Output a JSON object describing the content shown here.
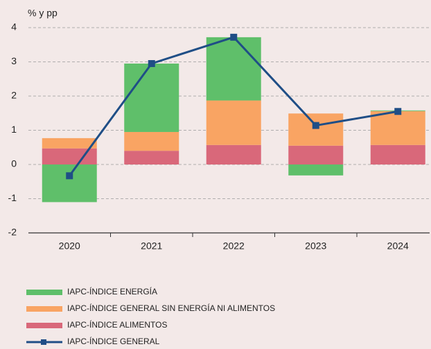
{
  "chart_data": {
    "type": "stacked_bar_line",
    "y_axis_label": "% y pp",
    "categories": [
      "2020",
      "2021",
      "2022",
      "2023",
      "2024"
    ],
    "series": [
      {
        "name": "IAPC-ÍNDICE ENERGÍA",
        "color": "#5fbf6a",
        "values": [
          -1.1,
          2.0,
          1.85,
          -0.32,
          0.02
        ]
      },
      {
        "name": "IAPC-ÍNDICE GENERAL SIN ENERGÍA NI ALIMENTOS",
        "color": "#f9a463",
        "values": [
          0.3,
          0.55,
          1.3,
          0.94,
          0.99
        ]
      },
      {
        "name": "IAPC-ÍNDICE ALIMENTOS",
        "color": "#d9687a",
        "values": [
          0.47,
          0.4,
          0.57,
          0.55,
          0.57
        ]
      },
      {
        "name": "IAPC-ÍNDICE GENERAL",
        "color": "#1f4e86",
        "type": "line",
        "values": [
          -0.33,
          2.95,
          3.72,
          1.14,
          1.55
        ]
      }
    ],
    "ylim": [
      -2,
      4
    ],
    "yticks": [
      -2,
      -1,
      0,
      1,
      2,
      3,
      4
    ],
    "grid": true
  }
}
